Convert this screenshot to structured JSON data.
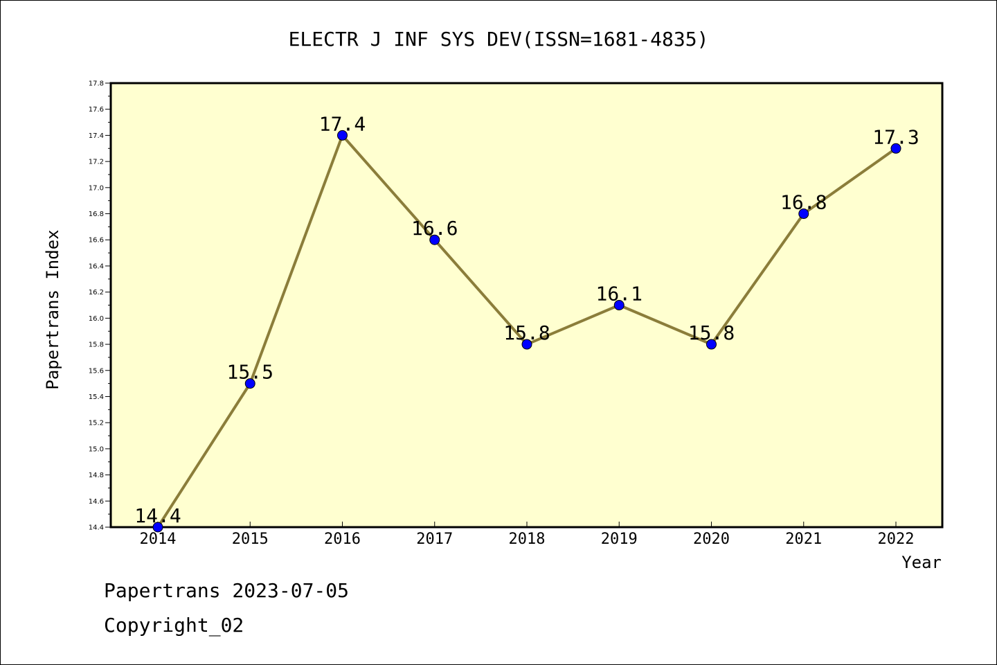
{
  "chart_data": {
    "type": "line",
    "title": "ELECTR J INF SYS DEV(ISSN=1681-4835)",
    "xlabel": "Year",
    "ylabel": "Papertrans Index",
    "categories": [
      "2014",
      "2015",
      "2016",
      "2017",
      "2018",
      "2019",
      "2020",
      "2021",
      "2022"
    ],
    "series": [
      {
        "values": [
          14.4,
          15.5,
          17.4,
          16.6,
          15.8,
          16.1,
          15.8,
          16.8,
          17.3
        ],
        "data_labels": [
          "14.4",
          "15.5",
          "17.4",
          "16.6",
          "15.8",
          "16.1",
          "15.8",
          "16.8",
          "17.3"
        ]
      }
    ],
    "ylim": [
      14.4,
      17.8
    ],
    "yticks": [
      "14.4",
      "14.6",
      "14.8",
      "15.0",
      "15.2",
      "15.4",
      "15.6",
      "15.8",
      "16.0",
      "16.2",
      "16.4",
      "16.6",
      "16.8",
      "17.0",
      "17.2",
      "17.4",
      "17.6",
      "17.8"
    ],
    "grid": false,
    "legend": "none",
    "colors": {
      "plot_background": "#ffffd0",
      "line": "#8b7d3a",
      "marker": "#0000ff",
      "axis": "#000000"
    }
  },
  "footer": {
    "date_text": "Papertrans 2023-07-05",
    "copyright_text": "Copyright_02"
  }
}
